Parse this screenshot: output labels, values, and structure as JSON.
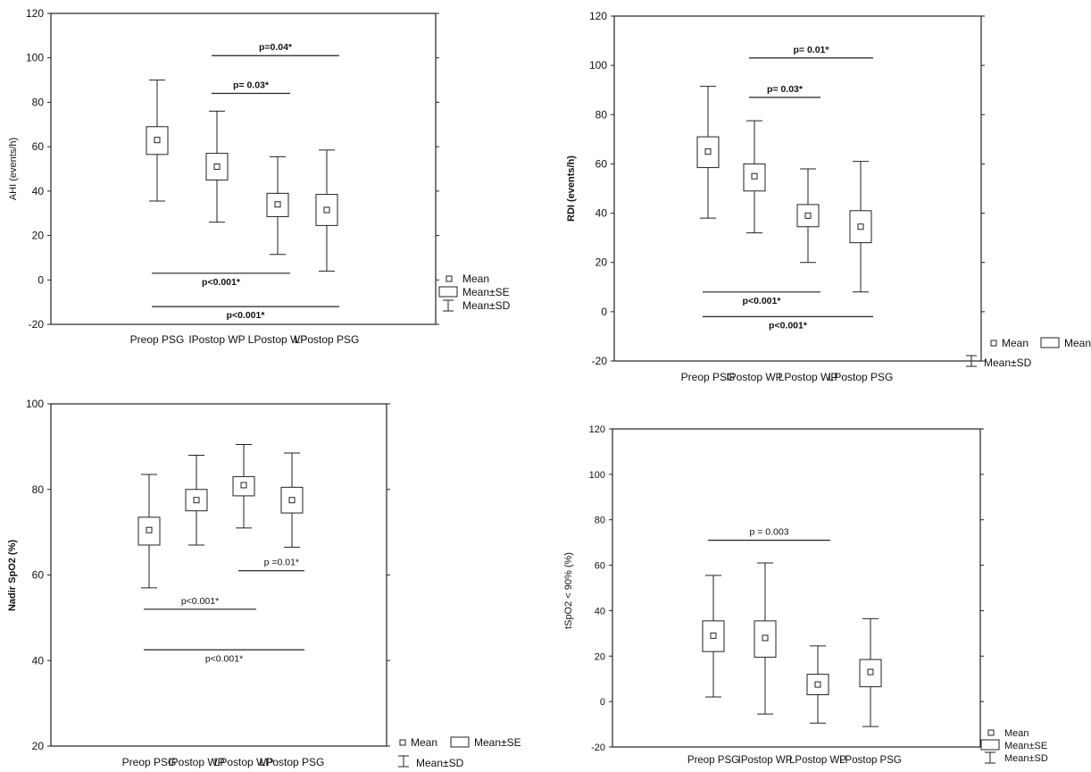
{
  "chart_data": [
    {
      "type": "box",
      "ylabel": "AHI (events/h)",
      "categories": [
        "Preop PSG",
        "IPostop WP",
        "LPostop WP",
        "LPostop PSG"
      ],
      "ylim": [
        -20,
        120
      ],
      "yticks": [
        -20,
        0,
        20,
        40,
        60,
        80,
        100,
        120
      ],
      "boxes": [
        {
          "mean": 63,
          "se_low": 56.5,
          "se_high": 69,
          "sd_low": 35.5,
          "sd_high": 90
        },
        {
          "mean": 51,
          "se_low": 45,
          "se_high": 57,
          "sd_low": 26,
          "sd_high": 76
        },
        {
          "mean": 34,
          "se_low": 28.5,
          "se_high": 39,
          "sd_low": 11.5,
          "sd_high": 55.5
        },
        {
          "mean": 31.5,
          "se_low": 24.5,
          "se_high": 38.5,
          "sd_low": 4,
          "sd_high": 58.5
        }
      ],
      "annotations": [
        {
          "text": "p=0.04*",
          "from": 1,
          "to": 3,
          "y": 101
        },
        {
          "text": "p= 0.03*",
          "from": 1,
          "to": 2,
          "y": 84
        },
        {
          "text": "p<0.001*",
          "from": 0,
          "to": 2,
          "y": 3
        },
        {
          "text": "p<0.001*",
          "from": 0,
          "to": 3,
          "y": -12
        }
      ],
      "legend": {
        "mean": "Mean",
        "se": "Mean±SE",
        "sd": "Mean±SD",
        "position": "right",
        "layout": "stacked"
      }
    },
    {
      "type": "box",
      "ylabel": "RDI (events/h)",
      "categories": [
        "Preop PSG",
        "IPostop WP",
        "LPostop WP",
        "LPostop PSG"
      ],
      "ylim": [
        -20,
        120
      ],
      "yticks": [
        -20,
        0,
        20,
        40,
        60,
        80,
        100,
        120
      ],
      "boxes": [
        {
          "mean": 65,
          "se_low": 58.5,
          "se_high": 71,
          "sd_low": 38,
          "sd_high": 91.5
        },
        {
          "mean": 55,
          "se_low": 49,
          "se_high": 60,
          "sd_low": 32,
          "sd_high": 77.5
        },
        {
          "mean": 39,
          "se_low": 34.5,
          "se_high": 43.5,
          "sd_low": 20,
          "sd_high": 58
        },
        {
          "mean": 34.5,
          "se_low": 28,
          "se_high": 41,
          "sd_low": 8,
          "sd_high": 61
        }
      ],
      "annotations": [
        {
          "text": "p= 0.01*",
          "from": 1,
          "to": 3,
          "y": 103
        },
        {
          "text": "p= 0.03*",
          "from": 1,
          "to": 2,
          "y": 87
        },
        {
          "text": "p<0.001*",
          "from": 0,
          "to": 2,
          "y": 8
        },
        {
          "text": "p<0.001*",
          "from": 0,
          "to": 3,
          "y": -2
        }
      ],
      "legend": {
        "mean": "Mean",
        "se": "Mean±SE",
        "sd": "Mean±SD",
        "position": "bottom-right",
        "layout": "row"
      }
    },
    {
      "type": "box",
      "ylabel": "Nadir SpO2 (%)",
      "categories": [
        "Preop PSG",
        "IPostop WP",
        "LPostop WP",
        "LPostop PSG"
      ],
      "ylim": [
        20,
        100
      ],
      "yticks": [
        20,
        40,
        60,
        80,
        100
      ],
      "boxes": [
        {
          "mean": 70.5,
          "se_low": 67,
          "se_high": 73.5,
          "sd_low": 57,
          "sd_high": 83.5
        },
        {
          "mean": 77.5,
          "se_low": 75,
          "se_high": 80,
          "sd_low": 67,
          "sd_high": 88
        },
        {
          "mean": 81,
          "se_low": 78.5,
          "se_high": 83,
          "sd_low": 71,
          "sd_high": 90.5
        },
        {
          "mean": 77.5,
          "se_low": 74.5,
          "se_high": 80.5,
          "sd_low": 66.5,
          "sd_high": 88.5
        }
      ],
      "annotations": [
        {
          "text": "p =0.01*",
          "from": 2,
          "to": 3,
          "y": 61
        },
        {
          "text": "p<0.001*",
          "from": 0,
          "to": 2,
          "y": 52
        },
        {
          "text": "p<0.001*",
          "from": 0,
          "to": 3,
          "y": 42.5
        }
      ],
      "legend": {
        "mean": "Mean",
        "se": "Mean±SE",
        "sd": "Mean±SD",
        "position": "bottom-right",
        "layout": "row"
      }
    },
    {
      "type": "box",
      "ylabel": "tSpO2 < 90% (%)",
      "categories": [
        "Preop PSG",
        "IPostop WP",
        "LPostop WP",
        "LPostop PSG"
      ],
      "ylim": [
        -20,
        120
      ],
      "yticks": [
        -20,
        0,
        20,
        40,
        60,
        80,
        100,
        120
      ],
      "boxes": [
        {
          "mean": 29,
          "se_low": 22,
          "se_high": 35.5,
          "sd_low": 2,
          "sd_high": 55.5
        },
        {
          "mean": 28,
          "se_low": 19.5,
          "se_high": 35.5,
          "sd_low": -5.5,
          "sd_high": 61
        },
        {
          "mean": 7.5,
          "se_low": 3,
          "se_high": 12,
          "sd_low": -9.5,
          "sd_high": 24.5
        },
        {
          "mean": 13,
          "se_low": 6.5,
          "se_high": 18.5,
          "sd_low": -11,
          "sd_high": 36.5
        }
      ],
      "annotations": [
        {
          "text": "p = 0.003",
          "from": 0,
          "to": 2,
          "y": 71
        }
      ],
      "legend": {
        "mean": "Mean",
        "se": "Mean±SE",
        "sd": "Mean±SD",
        "position": "right",
        "layout": "stacked"
      }
    }
  ]
}
